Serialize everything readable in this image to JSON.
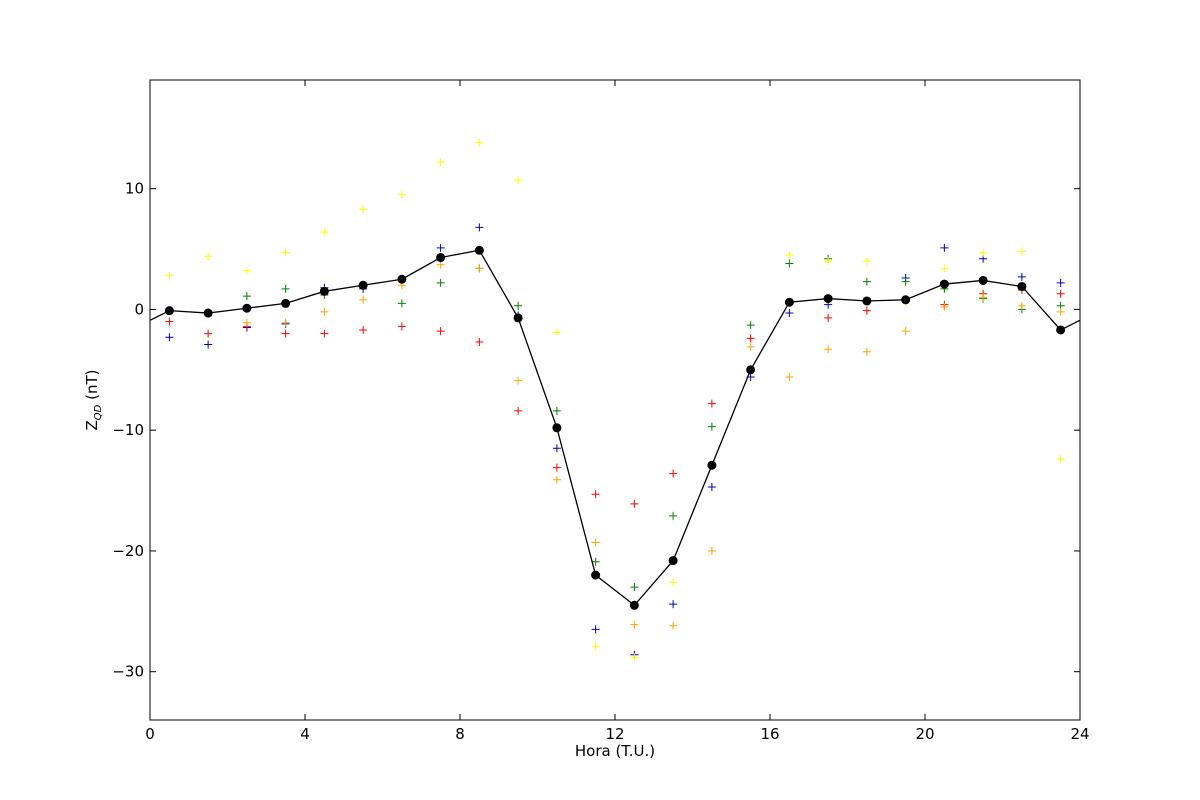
{
  "chart_data": {
    "type": "scatter",
    "xlabel": "Hora (T.U.)",
    "ylabel_main": "Z",
    "ylabel_sub": "QD",
    "ylabel_unit": " (nT)",
    "xlim": [
      0,
      24
    ],
    "ylim": [
      -34,
      19
    ],
    "xticks": [
      0,
      4,
      8,
      12,
      16,
      20,
      24
    ],
    "yticks": [
      -30,
      -20,
      -10,
      0,
      10
    ],
    "ytick_labels": [
      "−30",
      "−20",
      "−10",
      "0",
      "10"
    ],
    "grid": false,
    "x": [
      0.5,
      1.5,
      2.5,
      3.5,
      4.5,
      5.5,
      6.5,
      7.5,
      8.5,
      9.5,
      10.5,
      11.5,
      12.5,
      13.5,
      14.5,
      15.5,
      16.5,
      17.5,
      18.5,
      19.5,
      20.5,
      21.5,
      22.5,
      23.5
    ],
    "line_series": {
      "color": "#000000",
      "values": [
        -0.1,
        -0.3,
        0.1,
        0.5,
        1.5,
        2.0,
        2.5,
        4.3,
        4.9,
        -0.7,
        -9.8,
        -22.0,
        -24.5,
        -20.8,
        -12.9,
        -5.0,
        0.6,
        0.9,
        0.7,
        0.8,
        2.1,
        2.4,
        1.9,
        -1.7
      ],
      "extends_to": [
        [
          0,
          -0.9
        ],
        [
          24,
          -0.9
        ]
      ]
    },
    "series": [
      {
        "color": "#0000bf",
        "values": [
          -2.3,
          -2.9,
          -1.5,
          -1.2,
          1.8,
          1.7,
          null,
          5.1,
          6.8,
          -0.5,
          -11.5,
          -26.5,
          -28.6,
          -24.4,
          -14.7,
          -5.6,
          -0.3,
          0.4,
          null,
          2.6,
          5.1,
          4.2,
          2.7,
          2.2
        ]
      },
      {
        "color": "#008000",
        "values": [
          null,
          null,
          1.1,
          1.7,
          1.2,
          null,
          0.5,
          2.2,
          3.4,
          0.3,
          -8.4,
          -20.9,
          -23.0,
          -17.1,
          -9.7,
          -1.3,
          3.8,
          4.2,
          2.3,
          2.3,
          1.7,
          0.9,
          0.0,
          0.3
        ]
      },
      {
        "color": "#ff0000",
        "values": [
          -1.0,
          -2.0,
          -1.4,
          -2.0,
          -2.0,
          -1.7,
          -1.4,
          -1.8,
          -2.7,
          -8.4,
          -13.1,
          -15.3,
          -16.1,
          -13.6,
          -7.8,
          -2.4,
          null,
          -0.7,
          -0.1,
          null,
          0.4,
          1.3,
          1.6,
          1.3
        ]
      },
      {
        "color": "#ffa500",
        "values": [
          null,
          null,
          -1.1,
          -1.1,
          -0.2,
          0.8,
          2.0,
          3.7,
          3.4,
          -5.9,
          -14.1,
          -19.3,
          -26.1,
          -26.2,
          -20.0,
          -3.1,
          -5.6,
          -3.3,
          -3.5,
          -1.8,
          0.2,
          1.0,
          0.3,
          -0.2
        ]
      },
      {
        "color": "#ffff00",
        "values": [
          2.8,
          4.4,
          3.2,
          4.7,
          6.4,
          8.3,
          9.5,
          12.2,
          13.8,
          10.7,
          -1.9,
          -27.9,
          -28.8,
          -22.6,
          null,
          null,
          4.5,
          4.0,
          4.0,
          0.6,
          3.4,
          4.7,
          4.8,
          -12.4
        ]
      }
    ]
  }
}
